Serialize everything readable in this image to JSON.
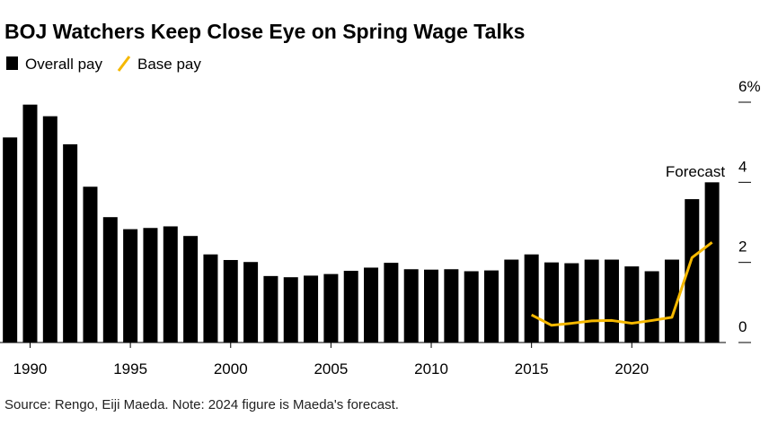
{
  "chart_data": {
    "type": "bar",
    "title": "BOJ Watchers Keep Close Eye on Spring Wage Talks",
    "source": "Source: Rengo, Eiji Maeda. Note: 2024 figure is Maeda's forecast.",
    "annotation": "Forecast",
    "x": [
      1989,
      1990,
      1991,
      1992,
      1993,
      1994,
      1995,
      1996,
      1997,
      1998,
      1999,
      2000,
      2001,
      2002,
      2003,
      2004,
      2005,
      2006,
      2007,
      2008,
      2009,
      2010,
      2011,
      2012,
      2013,
      2014,
      2015,
      2016,
      2017,
      2018,
      2019,
      2020,
      2021,
      2022,
      2023,
      2024
    ],
    "series": [
      {
        "name": "Overall pay",
        "type": "bar",
        "color": "#000000",
        "values": [
          5.12,
          5.94,
          5.65,
          4.95,
          3.89,
          3.13,
          2.83,
          2.86,
          2.9,
          2.66,
          2.2,
          2.06,
          2.01,
          1.66,
          1.63,
          1.67,
          1.71,
          1.79,
          1.87,
          1.99,
          1.83,
          1.82,
          1.83,
          1.78,
          1.8,
          2.07,
          2.2,
          2.0,
          1.98,
          2.07,
          2.07,
          1.9,
          1.78,
          2.07,
          3.58,
          4.0
        ]
      },
      {
        "name": "Base pay",
        "type": "line",
        "color": "#f5b800",
        "values": [
          null,
          null,
          null,
          null,
          null,
          null,
          null,
          null,
          null,
          null,
          null,
          null,
          null,
          null,
          null,
          null,
          null,
          null,
          null,
          null,
          null,
          null,
          null,
          null,
          null,
          null,
          0.69,
          0.43,
          0.48,
          0.54,
          0.55,
          0.48,
          0.55,
          0.63,
          2.12,
          2.5
        ]
      }
    ],
    "xlim": [
      1988.5,
      2024.6
    ],
    "xticks": [
      1990,
      1995,
      2000,
      2005,
      2010,
      2015,
      2020
    ],
    "ylim": [
      0,
      6
    ],
    "yticks": [
      0,
      2,
      4,
      {
        "value": 6,
        "label": "6%"
      }
    ]
  }
}
